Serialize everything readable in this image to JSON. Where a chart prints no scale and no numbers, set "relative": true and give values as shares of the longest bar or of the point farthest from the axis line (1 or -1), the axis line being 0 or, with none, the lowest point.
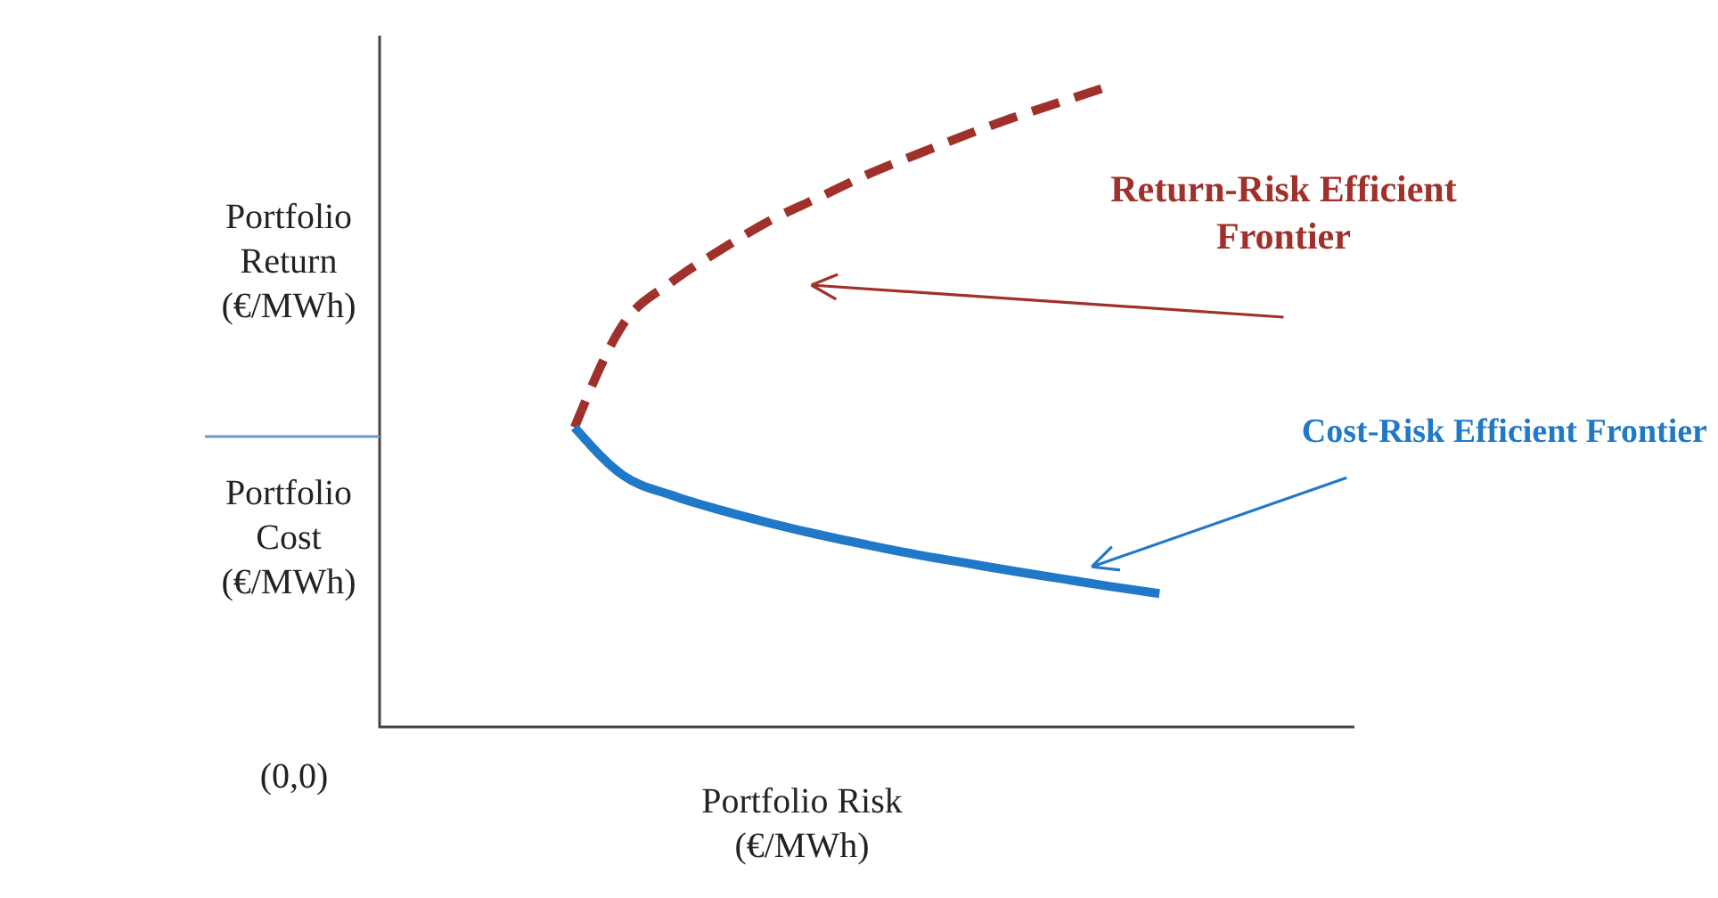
{
  "chart_data": {
    "type": "line",
    "relative": true,
    "ylabel": "Portfolio\nReturn\n(€/MWh)",
    "xlabel": "Portfolio  Risk\n(€/MWh)",
    "categories": [
      null,
      null,
      null,
      null,
      null,
      null,
      null,
      null,
      null,
      null,
      null,
      null,
      null,
      null,
      null,
      null,
      null,
      null,
      null,
      null,
      null
    ],
    "series": [
      {
        "name": "Return-Risk Efficient\nFrontier",
        "color": "#a0302a",
        "line_style": "dashed",
        "values": [
          null,
          null,
          null,
          null,
          0.467,
          0.628,
          0.694,
          0.744,
          0.789,
          0.825,
          0.861,
          0.892,
          0.922,
          0.95,
          0.975,
          1.0,
          null,
          null,
          null,
          null,
          null
        ]
      },
      {
        "name": "Cost-Risk Efficient Frontier",
        "color": "#1f78c8",
        "line_style": "solid",
        "values": [
          null,
          null,
          null,
          null,
          0.467,
          0.392,
          0.361,
          0.338,
          0.318,
          0.3,
          0.284,
          0.269,
          0.256,
          0.243,
          0.231,
          0.219,
          0.208,
          null,
          null,
          null,
          null
        ]
      }
    ],
    "annotations": [
      "Portfolio\nCost\n(€/MWh)",
      "(0,0)"
    ],
    "grid": false
  }
}
